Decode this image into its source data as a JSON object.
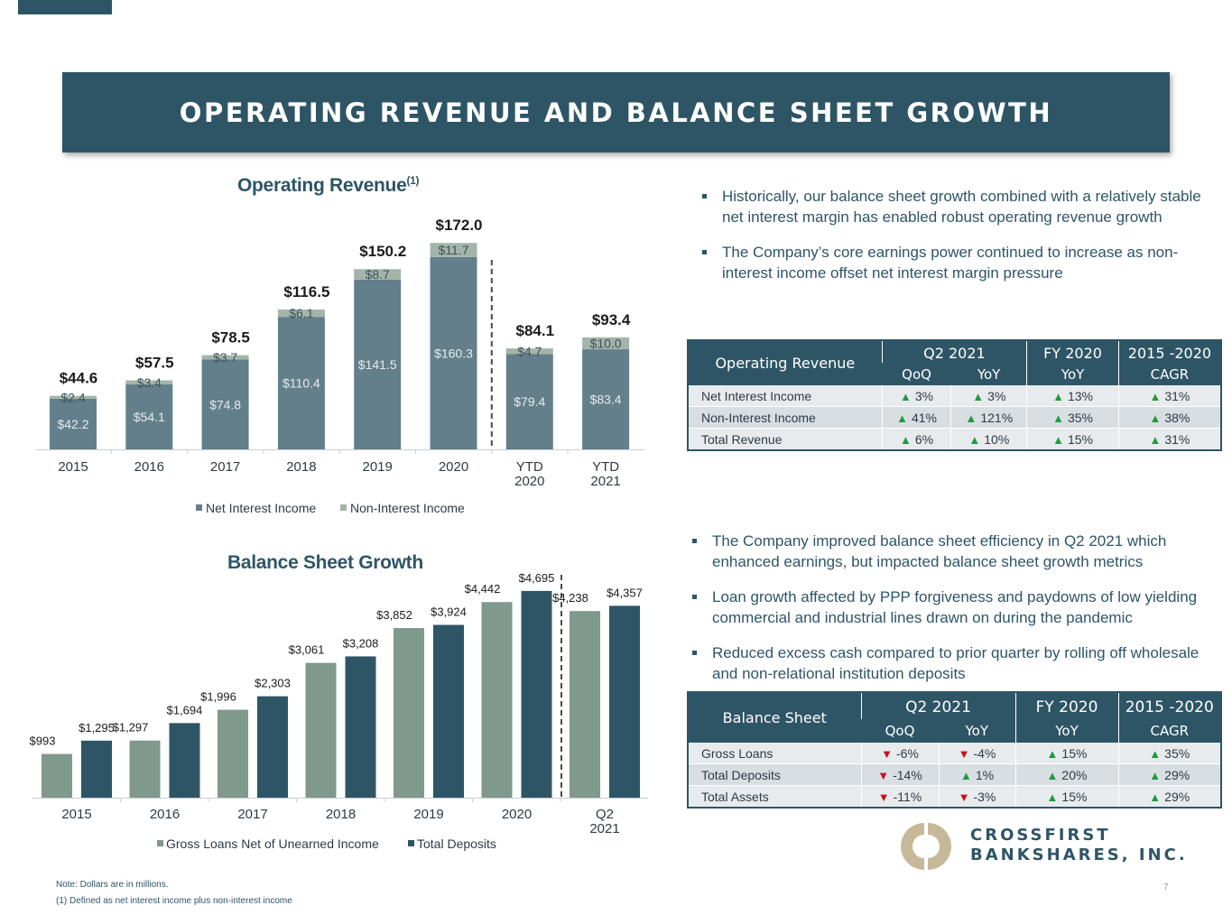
{
  "page": {
    "title": "OPERATING REVENUE AND BALANCE SHEET GROWTH",
    "page_number": "7",
    "notes": [
      "Note: Dollars are in millions.",
      "(1) Defined as net interest income plus non-interest income"
    ]
  },
  "logo": {
    "line1": "CROSSFIRST",
    "line2": "BANKSHARES, INC."
  },
  "colors": {
    "navy": "#2e5566",
    "slate": "#637f8b",
    "sage": "#a3b5a9",
    "gray_green": "#7f998c",
    "up": "#1f9a3f",
    "down": "#c0141c"
  },
  "revenue_chart_title": {
    "text": "Operating Revenue",
    "footnote": "(1)"
  },
  "balance_chart_title": "Balance Sheet Growth",
  "chart_data": [
    {
      "type": "bar",
      "stacked": true,
      "title": "Operating Revenue(1)",
      "categories": [
        "2015",
        "2016",
        "2017",
        "2018",
        "2019",
        "2020",
        "YTD 2020",
        "YTD 2021"
      ],
      "series": [
        {
          "name": "Net Interest Income",
          "values": [
            42.2,
            54.1,
            74.8,
            110.4,
            141.5,
            160.3,
            79.4,
            83.4
          ],
          "labels": [
            "$42.2",
            "$54.1",
            "$74.8",
            "$110.4",
            "$141.5",
            "$160.3",
            "$79.4",
            "$83.4"
          ]
        },
        {
          "name": "Non-Interest Income",
          "values": [
            2.4,
            3.4,
            3.7,
            6.1,
            8.7,
            11.7,
            4.7,
            10.0
          ],
          "labels": [
            "$2.4",
            "$3.4",
            "$3.7",
            "$6.1",
            "$8.7",
            "$11.7",
            "$4.7",
            "$10.0"
          ]
        }
      ],
      "totals": [
        44.6,
        57.5,
        78.5,
        116.5,
        150.2,
        172.0,
        84.1,
        93.4
      ],
      "total_labels": [
        "$44.6",
        "$57.5",
        "$78.5",
        "$116.5",
        "$150.2",
        "$172.0",
        "$84.1",
        "$93.4"
      ],
      "ylim": [
        0,
        180
      ],
      "legend": "bottom",
      "separator_after": "2020"
    },
    {
      "type": "bar",
      "title": "Balance Sheet Growth",
      "categories": [
        "2015",
        "2016",
        "2017",
        "2018",
        "2019",
        "2020",
        "Q2 2021"
      ],
      "series": [
        {
          "name": "Gross Loans Net of Unearned Income",
          "values": [
            993,
            1297,
            1996,
            3061,
            3852,
            4442,
            4238
          ],
          "labels": [
            "$993",
            "$1,297",
            "$1,996",
            "$3,061",
            "$3,852",
            "$4,442",
            "$4,238"
          ]
        },
        {
          "name": "Total Deposits",
          "values": [
            1295,
            1694,
            2303,
            3208,
            3924,
            4695,
            4357
          ],
          "labels": [
            "$1,295",
            "$1,694",
            "$2,303",
            "$3,208",
            "$3,924",
            "$4,695",
            "$4,357"
          ]
        }
      ],
      "ylim": [
        0,
        5000
      ],
      "legend": "bottom",
      "separator_after": "2020"
    }
  ],
  "revenue_bullets": [
    "Historically, our balance sheet growth combined with a relatively stable net interest margin has enabled robust operating revenue growth",
    "The Company’s core earnings power continued to increase as non-interest income offset net interest margin pressure"
  ],
  "balance_bullets": [
    "The Company improved balance sheet efficiency in Q2 2021 which enhanced earnings, but impacted balance sheet growth metrics",
    "Loan growth affected by PPP forgiveness and paydowns of low yielding commercial and industrial lines drawn on during the pandemic",
    "Reduced excess cash compared to prior quarter by rolling off wholesale and non-relational institution deposits"
  ],
  "revenue_table": {
    "header": {
      "label": "Operating Revenue",
      "q2": "Q2 2021",
      "fy": "FY 2020",
      "cagr_period": "2015 -2020",
      "qoq": "QoQ",
      "yoy": "YoY",
      "fy_yoy": "YoY",
      "cagr": "CAGR"
    },
    "rows": [
      {
        "label": "Net Interest Income",
        "cells": [
          {
            "dir": "up",
            "value": "3%"
          },
          {
            "dir": "up",
            "value": "3%"
          },
          {
            "dir": "up",
            "value": "13%"
          },
          {
            "dir": "up",
            "value": "31%"
          }
        ]
      },
      {
        "label": "Non-Interest Income",
        "cells": [
          {
            "dir": "up",
            "value": "41%"
          },
          {
            "dir": "up",
            "value": "121%"
          },
          {
            "dir": "up",
            "value": "35%"
          },
          {
            "dir": "up",
            "value": "38%"
          }
        ]
      },
      {
        "label": "Total Revenue",
        "cells": [
          {
            "dir": "up",
            "value": "6%"
          },
          {
            "dir": "up",
            "value": "10%"
          },
          {
            "dir": "up",
            "value": "15%"
          },
          {
            "dir": "up",
            "value": "31%"
          }
        ]
      }
    ]
  },
  "balance_table": {
    "header": {
      "label": "Balance Sheet",
      "q2": "Q2 2021",
      "fy": "FY 2020",
      "cagr_period": "2015 -2020",
      "qoq": "QoQ",
      "yoy": "YoY",
      "fy_yoy": "YoY",
      "cagr": "CAGR"
    },
    "rows": [
      {
        "label": "Gross Loans",
        "cells": [
          {
            "dir": "down",
            "value": "-6%"
          },
          {
            "dir": "down",
            "value": "-4%"
          },
          {
            "dir": "up",
            "value": "15%"
          },
          {
            "dir": "up",
            "value": "35%"
          }
        ]
      },
      {
        "label": "Total Deposits",
        "cells": [
          {
            "dir": "down",
            "value": "-14%"
          },
          {
            "dir": "up",
            "value": "1%"
          },
          {
            "dir": "up",
            "value": "20%"
          },
          {
            "dir": "up",
            "value": "29%"
          }
        ]
      },
      {
        "label": "Total Assets",
        "cells": [
          {
            "dir": "down",
            "value": "-11%"
          },
          {
            "dir": "down",
            "value": "-3%"
          },
          {
            "dir": "up",
            "value": "15%"
          },
          {
            "dir": "up",
            "value": "29%"
          }
        ]
      }
    ]
  }
}
